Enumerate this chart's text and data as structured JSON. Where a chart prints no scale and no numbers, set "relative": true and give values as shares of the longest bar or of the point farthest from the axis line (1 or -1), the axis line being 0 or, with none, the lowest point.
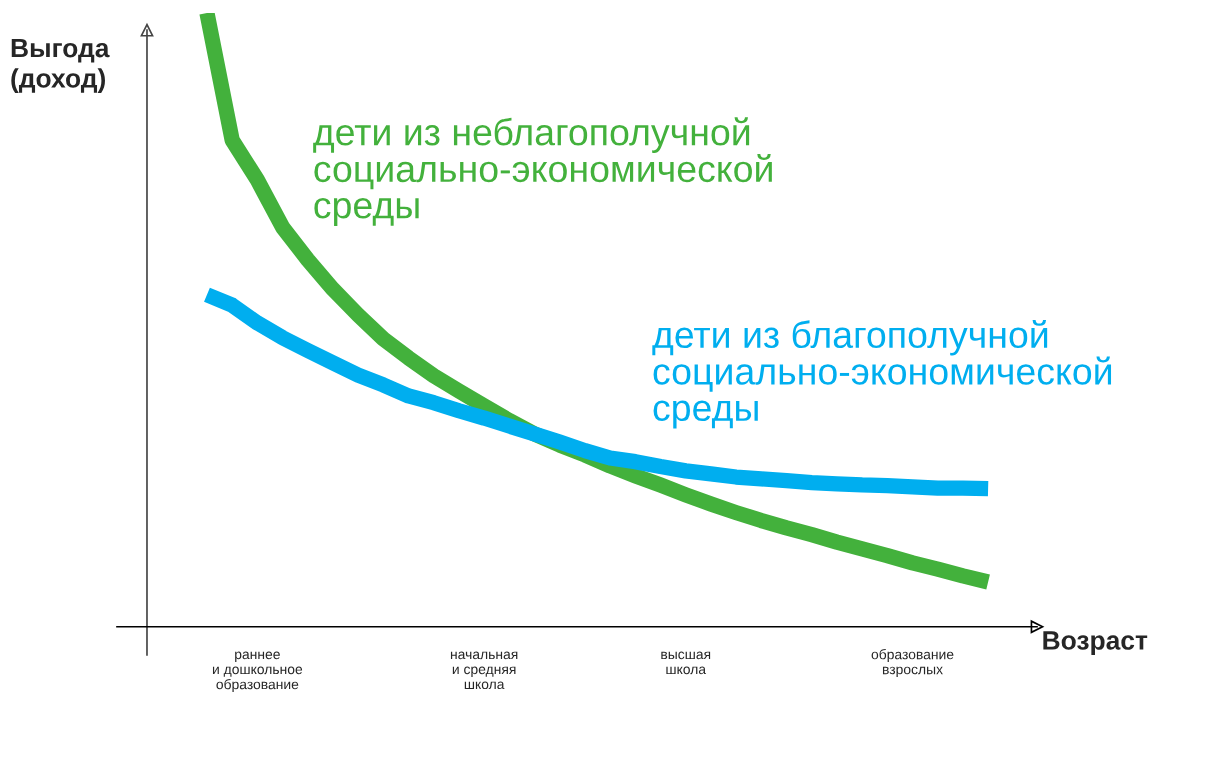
{
  "chart_data": {
    "type": "line",
    "relative": true,
    "xlabel": "Возраст",
    "ylabel": "Выгода\n(доход)",
    "categories": [
      null,
      null,
      "раннее\nи дошкольное\nобразование",
      null,
      null,
      null,
      null,
      null,
      null,
      null,
      null,
      "начальная\nи средняя\nшкола",
      null,
      null,
      null,
      null,
      null,
      null,
      null,
      "высшая\nшкола",
      null,
      null,
      null,
      null,
      null,
      null,
      null,
      null,
      "образование\nвзрослых",
      null,
      null,
      null
    ],
    "series": [
      {
        "name": "дети из неблагополучной\nсоциально-экономической\nсреды",
        "color": "#43b13c",
        "values": [
          1.0,
          0.793,
          0.728,
          0.651,
          0.598,
          0.55,
          0.508,
          0.469,
          0.438,
          0.409,
          0.384,
          0.36,
          0.336,
          0.314,
          0.296,
          0.28,
          0.262,
          0.246,
          0.231,
          0.215,
          0.2,
          0.186,
          0.173,
          0.161,
          0.15,
          0.138,
          0.127,
          0.116,
          0.104,
          0.094,
          0.083,
          0.073
        ]
      },
      {
        "name": "дети из благополучной\nсоциально-экономической\nсреды",
        "color": "#00aeef",
        "values": [
          0.541,
          0.524,
          0.495,
          0.471,
          0.45,
          0.43,
          0.41,
          0.394,
          0.376,
          0.365,
          0.352,
          0.34,
          0.327,
          0.314,
          0.301,
          0.287,
          0.275,
          0.269,
          0.261,
          0.254,
          0.249,
          0.244,
          0.241,
          0.238,
          0.235,
          0.233,
          0.231,
          0.23,
          0.228,
          0.226,
          0.226,
          0.225
        ]
      }
    ],
    "line_style": "solid",
    "marker": "none"
  }
}
